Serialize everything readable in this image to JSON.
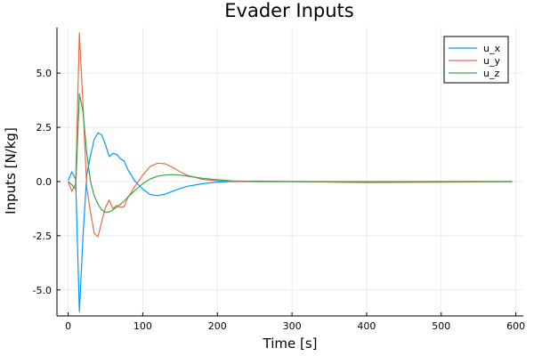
{
  "chart_data": {
    "type": "line",
    "title": "Evader Inputs",
    "xlabel": "Time [s]",
    "ylabel": "Inputs [N/kg]",
    "xlim": [
      -15,
      610
    ],
    "ylim": [
      -6.2,
      7.1
    ],
    "xticks": [
      0,
      100,
      200,
      300,
      400,
      500,
      600
    ],
    "yticks": [
      -5.0,
      -2.5,
      0.0,
      2.5,
      5.0
    ],
    "xtick_labels": [
      "0",
      "100",
      "200",
      "300",
      "400",
      "500",
      "600"
    ],
    "ytick_labels": [
      "-5.0",
      "-2.5",
      "0.0",
      "2.5",
      "5.0"
    ],
    "grid": true,
    "legend_position": "top-right",
    "series": [
      {
        "name": "u_x",
        "color": "#009af9",
        "x": [
          0,
          5,
          10,
          15,
          20,
          25,
          30,
          35,
          40,
          45,
          50,
          55,
          60,
          65,
          70,
          75,
          80,
          90,
          100,
          110,
          120,
          130,
          140,
          150,
          160,
          180,
          200,
          220,
          250,
          300,
          400,
          500,
          595
        ],
        "y": [
          0.05,
          0.45,
          0.1,
          -6.0,
          -2.5,
          0.3,
          1.2,
          1.95,
          2.25,
          2.15,
          1.7,
          1.15,
          1.3,
          1.25,
          1.05,
          0.95,
          0.55,
          0.0,
          -0.35,
          -0.6,
          -0.65,
          -0.58,
          -0.45,
          -0.32,
          -0.22,
          -0.1,
          -0.03,
          0.0,
          0.02,
          0.0,
          -0.02,
          0.0,
          0.0
        ]
      },
      {
        "name": "u_y",
        "color": "#e26f46",
        "x": [
          0,
          5,
          10,
          15,
          20,
          25,
          30,
          35,
          40,
          45,
          50,
          55,
          60,
          65,
          70,
          75,
          80,
          90,
          100,
          110,
          120,
          130,
          140,
          150,
          160,
          180,
          200,
          220,
          250,
          300,
          400,
          500,
          595
        ],
        "y": [
          0.0,
          -0.45,
          -0.1,
          6.85,
          3.5,
          -0.3,
          -1.4,
          -2.4,
          -2.55,
          -1.85,
          -1.2,
          -0.85,
          -1.25,
          -1.1,
          -1.2,
          -1.15,
          -0.75,
          -0.2,
          0.3,
          0.7,
          0.85,
          0.82,
          0.65,
          0.45,
          0.28,
          0.1,
          0.03,
          0.0,
          0.0,
          0.0,
          -0.05,
          -0.03,
          0.0
        ]
      },
      {
        "name": "u_z",
        "color": "#3da44d",
        "x": [
          0,
          5,
          10,
          15,
          20,
          25,
          30,
          35,
          40,
          45,
          50,
          55,
          60,
          65,
          70,
          75,
          80,
          90,
          100,
          110,
          120,
          130,
          140,
          150,
          160,
          180,
          200,
          220,
          250,
          300,
          400,
          500,
          595
        ],
        "y": [
          0.0,
          -0.15,
          -0.35,
          4.05,
          3.2,
          1.3,
          0.0,
          -0.65,
          -1.05,
          -1.3,
          -1.42,
          -1.4,
          -1.3,
          -1.18,
          -1.05,
          -0.9,
          -0.72,
          -0.4,
          -0.1,
          0.12,
          0.25,
          0.3,
          0.32,
          0.3,
          0.25,
          0.15,
          0.08,
          0.03,
          0.0,
          0.0,
          0.0,
          0.0,
          0.0
        ]
      }
    ]
  }
}
